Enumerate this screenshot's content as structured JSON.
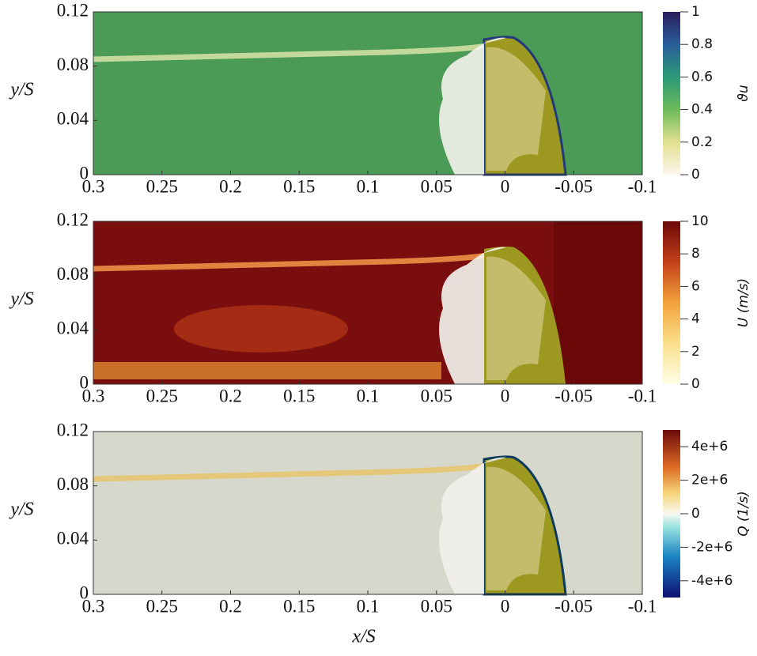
{
  "chart_data": [
    {
      "type": "heatmap",
      "ylabel": "y/S",
      "xlim": [
        0.3,
        -0.1
      ],
      "xticks": [
        0.3,
        0.25,
        0.2,
        0.15,
        0.1,
        0.05,
        0,
        -0.05,
        -0.1
      ],
      "ylim": [
        0,
        0.12
      ],
      "yticks": [
        0,
        0.04,
        0.08,
        0.12
      ],
      "colorbar": {
        "label": "ϑu",
        "lim": [
          0,
          1
        ],
        "ticks": [
          0,
          0.2,
          0.4,
          0.6,
          0.8,
          1
        ]
      }
    },
    {
      "type": "heatmap",
      "ylabel": "y/S",
      "xlim": [
        0.3,
        -0.1
      ],
      "xticks": [
        0.3,
        0.25,
        0.2,
        0.15,
        0.1,
        0.05,
        0,
        -0.05,
        -0.1
      ],
      "ylim": [
        0,
        0.12
      ],
      "yticks": [
        0,
        0.04,
        0.08,
        0.12
      ],
      "colorbar": {
        "label": "U (m/s)",
        "lim": [
          0,
          10
        ],
        "ticks": [
          0,
          2,
          4,
          6,
          8,
          10
        ]
      }
    },
    {
      "type": "heatmap",
      "ylabel": "y/S",
      "xlabel": "x/S",
      "xlim": [
        0.3,
        -0.1
      ],
      "xticks": [
        0.3,
        0.25,
        0.2,
        0.15,
        0.1,
        0.05,
        0,
        -0.05,
        -0.1
      ],
      "ylim": [
        0,
        0.12
      ],
      "yticks": [
        0,
        0.04,
        0.08,
        0.12
      ],
      "colorbar": {
        "label": "Q (1/s)",
        "lim": [
          -5000000,
          5000000
        ],
        "ticks": [
          {
            "value": -4000000,
            "label": "-4e+6"
          },
          {
            "value": -2000000,
            "label": "-2e+6"
          },
          0,
          {
            "value": 2000000,
            "label": "2e+6"
          },
          {
            "value": 4000000,
            "label": "4e+6"
          }
        ]
      }
    }
  ]
}
